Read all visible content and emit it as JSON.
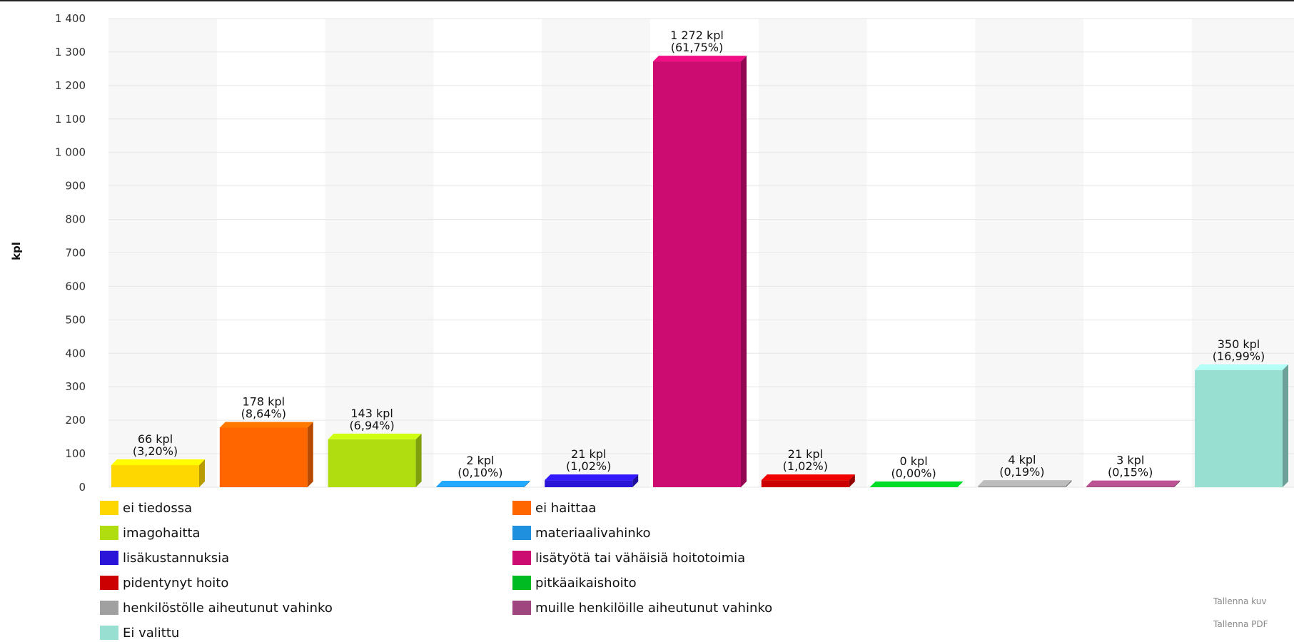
{
  "chart_data": {
    "type": "bar",
    "title": "",
    "xlabel": "",
    "ylabel": "kpl",
    "ylim": [
      0,
      1400
    ],
    "yticks": [
      0,
      100,
      200,
      300,
      400,
      500,
      600,
      700,
      800,
      900,
      1000,
      1100,
      1200,
      1300,
      1400
    ],
    "ytick_labels": [
      "0",
      "100",
      "200",
      "300",
      "400",
      "500",
      "600",
      "700",
      "800",
      "900",
      "1 000",
      "1 100",
      "1 200",
      "1 300",
      "1 400"
    ],
    "grid": true,
    "legend_position": "bottom",
    "categories": [
      "ei tiedossa",
      "ei haittaa",
      "imagohaitta",
      "materiaalivahinko",
      "lisäkustannuksia",
      "lisätyötä tai vähäisiä hoitotoimia",
      "pidentynyt hoito",
      "pitkäaikaishoito",
      "henkilöstölle aiheutunut vahinko",
      "muille henkilöille aiheutunut vahinko",
      "Ei valittu"
    ],
    "values": [
      66,
      178,
      143,
      2,
      21,
      1272,
      21,
      0,
      4,
      3,
      350
    ],
    "percent_labels": [
      "(3,20%)",
      "(8,64%)",
      "(6,94%)",
      "(0,10%)",
      "(1,02%)",
      "(61,75%)",
      "(1,02%)",
      "(0,00%)",
      "(0,19%)",
      "(0,15%)",
      "(16,99%)"
    ],
    "value_labels": [
      "66 kpl",
      "178 kpl",
      "143 kpl",
      "2 kpl",
      "21 kpl",
      "1 272 kpl",
      "21 kpl",
      "0 kpl",
      "4 kpl",
      "3 kpl",
      "350 kpl"
    ],
    "colors": [
      "#FFD700",
      "#FF6600",
      "#B0DD10",
      "#1E90DD",
      "#2A14D8",
      "#CC0C70",
      "#CC0000",
      "#00BB22",
      "#A0A0A0",
      "#A0467E",
      "#98DFD2"
    ]
  },
  "export": {
    "save_image": "Tallenna kuv",
    "save_pdf": "Tallenna PDF"
  }
}
